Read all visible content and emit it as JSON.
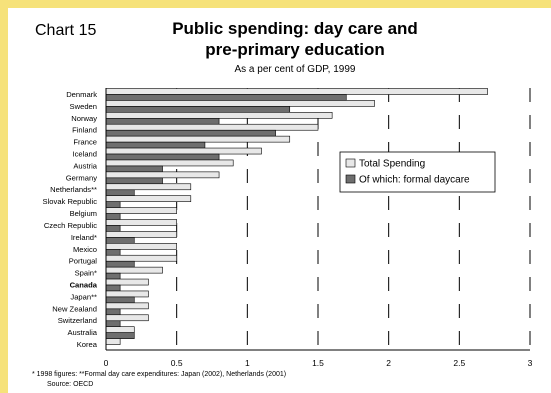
{
  "page": {
    "background": "#ffffff",
    "accent_top": "#f6e27a",
    "accent_left": "#f6e27a"
  },
  "chart_label": "Chart 15",
  "chart_data": {
    "type": "bar",
    "orientation": "horizontal",
    "title": "Public spending: day care and pre-primary education",
    "title_lines": [
      "Public spending: day care and",
      "pre-primary education"
    ],
    "subtitle": "As a per cent of GDP, 1999",
    "xlabel": "",
    "ylabel": "",
    "xlim": [
      0,
      3
    ],
    "xticks": [
      "0",
      "0.5",
      "1",
      "1.5",
      "2",
      "2.5",
      "3"
    ],
    "tick_values": [
      0,
      0.5,
      1,
      1.5,
      2,
      2.5,
      3
    ],
    "grid": "vertical lines at major ticks",
    "legend_position": "right-middle",
    "highlight_category": "Canada",
    "categories": [
      "Denmark",
      "Sweden",
      "Norway",
      "Finland",
      "France",
      "Iceland",
      "Austria",
      "Germany",
      "Netherlands**",
      "Slovak Republic",
      "Belgium",
      "Czech Republic",
      "Ireland*",
      "Mexico",
      "Portugal",
      "Spain*",
      "Canada",
      "Japan**",
      "New Zealand",
      "Switzerland",
      "Australia",
      "Korea"
    ],
    "series": [
      {
        "name": "Total Spending",
        "color": "#e8e8e8",
        "values": [
          2.7,
          1.9,
          1.6,
          1.5,
          1.3,
          1.1,
          0.9,
          0.8,
          0.6,
          0.6,
          0.5,
          0.5,
          0.5,
          0.5,
          0.5,
          0.4,
          0.3,
          0.3,
          0.3,
          0.3,
          0.2,
          0.1
        ]
      },
      {
        "name": "Of which: formal daycare",
        "color": "#6e6e6e",
        "values": [
          1.7,
          1.3,
          0.8,
          1.2,
          0.7,
          0.8,
          0.4,
          0.4,
          0.2,
          0.1,
          0.1,
          0.1,
          0.2,
          0.1,
          0.2,
          0.1,
          0.1,
          0.2,
          0.1,
          0.1,
          0.2,
          0.0
        ]
      }
    ]
  },
  "footnote": "* 1998 figures: **Formal day care expenditures: Japan (2002), Netherlands (2001)",
  "source": "Source:  OECD"
}
